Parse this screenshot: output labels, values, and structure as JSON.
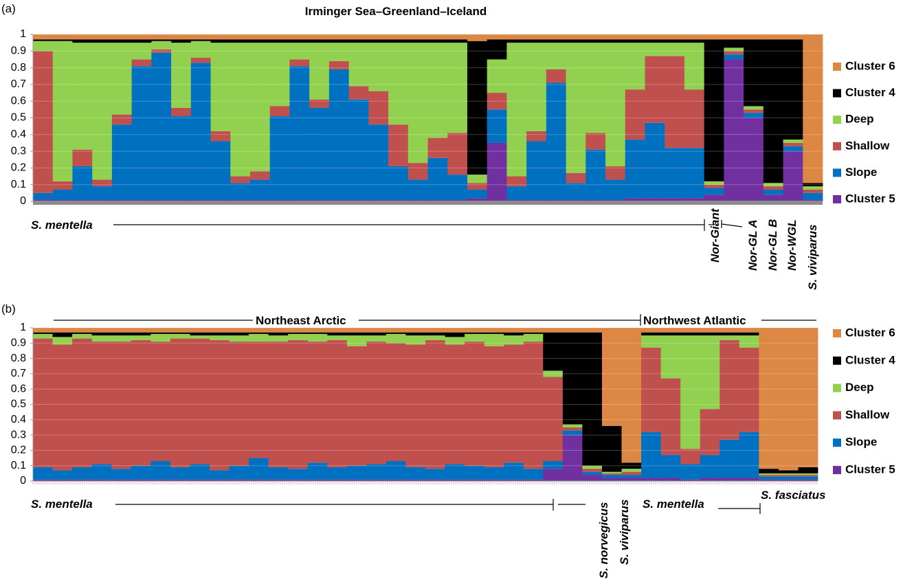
{
  "chart_data": [
    {
      "type": "stacked_bar",
      "label": "(a)",
      "title": "Irminger Sea–Greenland–Iceland",
      "categories": [
        null,
        null,
        null,
        null,
        null,
        null,
        null,
        null,
        null,
        null,
        null,
        null,
        null,
        null,
        null,
        null,
        null,
        null,
        null,
        null,
        null,
        null,
        null,
        null,
        null,
        null,
        null,
        null,
        null,
        null,
        null,
        null,
        null,
        null,
        null,
        null,
        null,
        null,
        null,
        null
      ],
      "series": [
        {
          "name": "Cluster 5",
          "color": "#7030a0",
          "values": [
            0.01,
            0.01,
            0.01,
            0.01,
            0.01,
            0.01,
            0.01,
            0.01,
            0.01,
            0.01,
            0.01,
            0.01,
            0.01,
            0.01,
            0.01,
            0.01,
            0.01,
            0.01,
            0.01,
            0.01,
            0.01,
            0.01,
            0.02,
            0.35,
            0.01,
            0.01,
            0.01,
            0.01,
            0.01,
            0.01,
            0.02,
            0.02,
            0.02,
            0.02,
            0.04,
            0.85,
            0.5,
            0.04,
            0.3,
            0.01
          ]
        },
        {
          "name": "Slope",
          "color": "#0070c0",
          "values": [
            0.04,
            0.06,
            0.2,
            0.08,
            0.45,
            0.8,
            0.88,
            0.5,
            0.82,
            0.35,
            0.1,
            0.12,
            0.5,
            0.8,
            0.55,
            0.78,
            0.6,
            0.45,
            0.2,
            0.12,
            0.25,
            0.15,
            0.05,
            0.2,
            0.08,
            0.35,
            0.7,
            0.1,
            0.3,
            0.12,
            0.35,
            0.45,
            0.3,
            0.3,
            0.04,
            0.03,
            0.03,
            0.03,
            0.03,
            0.04
          ]
        },
        {
          "name": "Shallow",
          "color": "#c0504d",
          "values": [
            0.85,
            0.05,
            0.1,
            0.04,
            0.06,
            0.04,
            0.02,
            0.05,
            0.03,
            0.06,
            0.04,
            0.05,
            0.06,
            0.04,
            0.05,
            0.05,
            0.08,
            0.2,
            0.25,
            0.1,
            0.12,
            0.25,
            0.04,
            0.1,
            0.06,
            0.06,
            0.08,
            0.06,
            0.1,
            0.08,
            0.3,
            0.4,
            0.55,
            0.35,
            0.02,
            0.02,
            0.02,
            0.02,
            0.02,
            0.02
          ]
        },
        {
          "name": "Deep",
          "color": "#92d050",
          "values": [
            0.06,
            0.84,
            0.64,
            0.82,
            0.43,
            0.1,
            0.05,
            0.39,
            0.1,
            0.53,
            0.8,
            0.77,
            0.38,
            0.1,
            0.34,
            0.11,
            0.26,
            0.29,
            0.49,
            0.72,
            0.57,
            0.54,
            0.05,
            0.2,
            0.8,
            0.53,
            0.16,
            0.78,
            0.54,
            0.74,
            0.28,
            0.08,
            0.08,
            0.28,
            0.02,
            0.02,
            0.02,
            0.02,
            0.02,
            0.02
          ]
        },
        {
          "name": "Cluster 4",
          "color": "#000000",
          "values": [
            0.01,
            0.01,
            0.02,
            0.02,
            0.02,
            0.02,
            0.01,
            0.02,
            0.01,
            0.02,
            0.02,
            0.02,
            0.02,
            0.02,
            0.02,
            0.02,
            0.02,
            0.02,
            0.02,
            0.02,
            0.02,
            0.02,
            0.8,
            0.12,
            0.02,
            0.02,
            0.02,
            0.02,
            0.02,
            0.02,
            0.02,
            0.02,
            0.02,
            0.02,
            0.85,
            0.05,
            0.4,
            0.86,
            0.6,
            0.02
          ]
        },
        {
          "name": "Cluster 6",
          "color": "#dd8744",
          "values": [
            0.03,
            0.03,
            0.03,
            0.03,
            0.03,
            0.03,
            0.03,
            0.03,
            0.03,
            0.03,
            0.03,
            0.03,
            0.03,
            0.03,
            0.03,
            0.03,
            0.03,
            0.03,
            0.03,
            0.03,
            0.03,
            0.03,
            0.04,
            0.03,
            0.03,
            0.03,
            0.03,
            0.03,
            0.03,
            0.03,
            0.03,
            0.03,
            0.03,
            0.03,
            0.03,
            0.03,
            0.03,
            0.03,
            0.03,
            0.89
          ]
        }
      ],
      "ylim": [
        0,
        1
      ],
      "yticks": [
        0,
        0.1,
        0.2,
        0.3,
        0.4,
        0.5,
        0.6,
        0.7,
        0.8,
        0.9,
        1
      ],
      "grid": true,
      "annotations": [
        "S. mentella",
        "Nor-Giant",
        "Nor-GL A",
        "Nor-GL B",
        "Nor-WGL",
        "S. viviparus"
      ]
    },
    {
      "type": "stacked_bar",
      "label": "(b)",
      "categories": [
        null,
        null,
        null,
        null,
        null,
        null,
        null,
        null,
        null,
        null,
        null,
        null,
        null,
        null,
        null,
        null,
        null,
        null,
        null,
        null,
        null,
        null,
        null,
        null,
        null,
        null,
        null,
        null,
        null,
        null,
        null,
        null,
        null,
        null,
        null,
        null,
        null,
        null,
        null,
        null
      ],
      "series": [
        {
          "name": "Cluster 5",
          "color": "#7030a0",
          "values": [
            0.01,
            0.01,
            0.01,
            0.01,
            0.01,
            0.01,
            0.01,
            0.01,
            0.01,
            0.01,
            0.01,
            0.01,
            0.01,
            0.01,
            0.01,
            0.01,
            0.01,
            0.01,
            0.01,
            0.01,
            0.01,
            0.01,
            0.01,
            0.01,
            0.01,
            0.01,
            0.08,
            0.3,
            0.04,
            0.02,
            0.02,
            0.02,
            0.02,
            0.01,
            0.02,
            0.02,
            0.02,
            0.01,
            0.01,
            0.01
          ]
        },
        {
          "name": "Slope",
          "color": "#0070c0",
          "values": [
            0.08,
            0.06,
            0.08,
            0.1,
            0.07,
            0.09,
            0.12,
            0.08,
            0.1,
            0.06,
            0.09,
            0.14,
            0.08,
            0.07,
            0.11,
            0.08,
            0.09,
            0.1,
            0.12,
            0.08,
            0.07,
            0.1,
            0.09,
            0.08,
            0.11,
            0.07,
            0.05,
            0.03,
            0.02,
            0.02,
            0.02,
            0.3,
            0.15,
            0.1,
            0.15,
            0.25,
            0.3,
            0.02,
            0.02,
            0.02
          ]
        },
        {
          "name": "Shallow",
          "color": "#c0504d",
          "values": [
            0.84,
            0.82,
            0.84,
            0.8,
            0.83,
            0.82,
            0.78,
            0.84,
            0.82,
            0.85,
            0.81,
            0.76,
            0.82,
            0.84,
            0.79,
            0.83,
            0.78,
            0.8,
            0.77,
            0.8,
            0.84,
            0.78,
            0.81,
            0.79,
            0.77,
            0.83,
            0.55,
            0.02,
            0.02,
            0.01,
            0.02,
            0.55,
            0.5,
            0.1,
            0.3,
            0.65,
            0.55,
            0.01,
            0.01,
            0.01
          ]
        },
        {
          "name": "Deep",
          "color": "#92d050",
          "values": [
            0.03,
            0.05,
            0.03,
            0.04,
            0.04,
            0.03,
            0.05,
            0.03,
            0.02,
            0.03,
            0.04,
            0.05,
            0.04,
            0.04,
            0.05,
            0.03,
            0.07,
            0.04,
            0.06,
            0.06,
            0.03,
            0.05,
            0.05,
            0.08,
            0.06,
            0.05,
            0.04,
            0.02,
            0.02,
            0.01,
            0.02,
            0.08,
            0.28,
            0.74,
            0.48,
            0.03,
            0.08,
            0.01,
            0.01,
            0.01
          ]
        },
        {
          "name": "Cluster 4",
          "color": "#000000",
          "values": [
            0.01,
            0.03,
            0.01,
            0.02,
            0.02,
            0.02,
            0.01,
            0.01,
            0.02,
            0.02,
            0.02,
            0.01,
            0.02,
            0.01,
            0.01,
            0.02,
            0.02,
            0.02,
            0.01,
            0.02,
            0.02,
            0.03,
            0.01,
            0.01,
            0.02,
            0.01,
            0.25,
            0.6,
            0.87,
            0.3,
            0.04,
            0.02,
            0.02,
            0.02,
            0.02,
            0.02,
            0.02,
            0.03,
            0.02,
            0.04
          ]
        },
        {
          "name": "Cluster 6",
          "color": "#dd8744",
          "values": [
            0.03,
            0.03,
            0.03,
            0.03,
            0.03,
            0.03,
            0.03,
            0.03,
            0.03,
            0.03,
            0.03,
            0.03,
            0.03,
            0.03,
            0.03,
            0.03,
            0.03,
            0.03,
            0.03,
            0.03,
            0.03,
            0.03,
            0.03,
            0.03,
            0.03,
            0.03,
            0.03,
            0.03,
            0.03,
            0.64,
            0.88,
            0.03,
            0.03,
            0.03,
            0.03,
            0.03,
            0.03,
            0.92,
            0.93,
            0.91
          ]
        }
      ],
      "ylim": [
        0,
        1
      ],
      "yticks": [
        0,
        0.1,
        0.2,
        0.3,
        0.4,
        0.5,
        0.6,
        0.7,
        0.8,
        0.9,
        1
      ],
      "grid": true,
      "annotations": [
        "Northeast Arctic",
        "Northwest Atlantic",
        "S. mentella",
        "S. norvegicus",
        "S. viviparus",
        "S. mentella",
        "S. fasciatus"
      ]
    }
  ]
}
